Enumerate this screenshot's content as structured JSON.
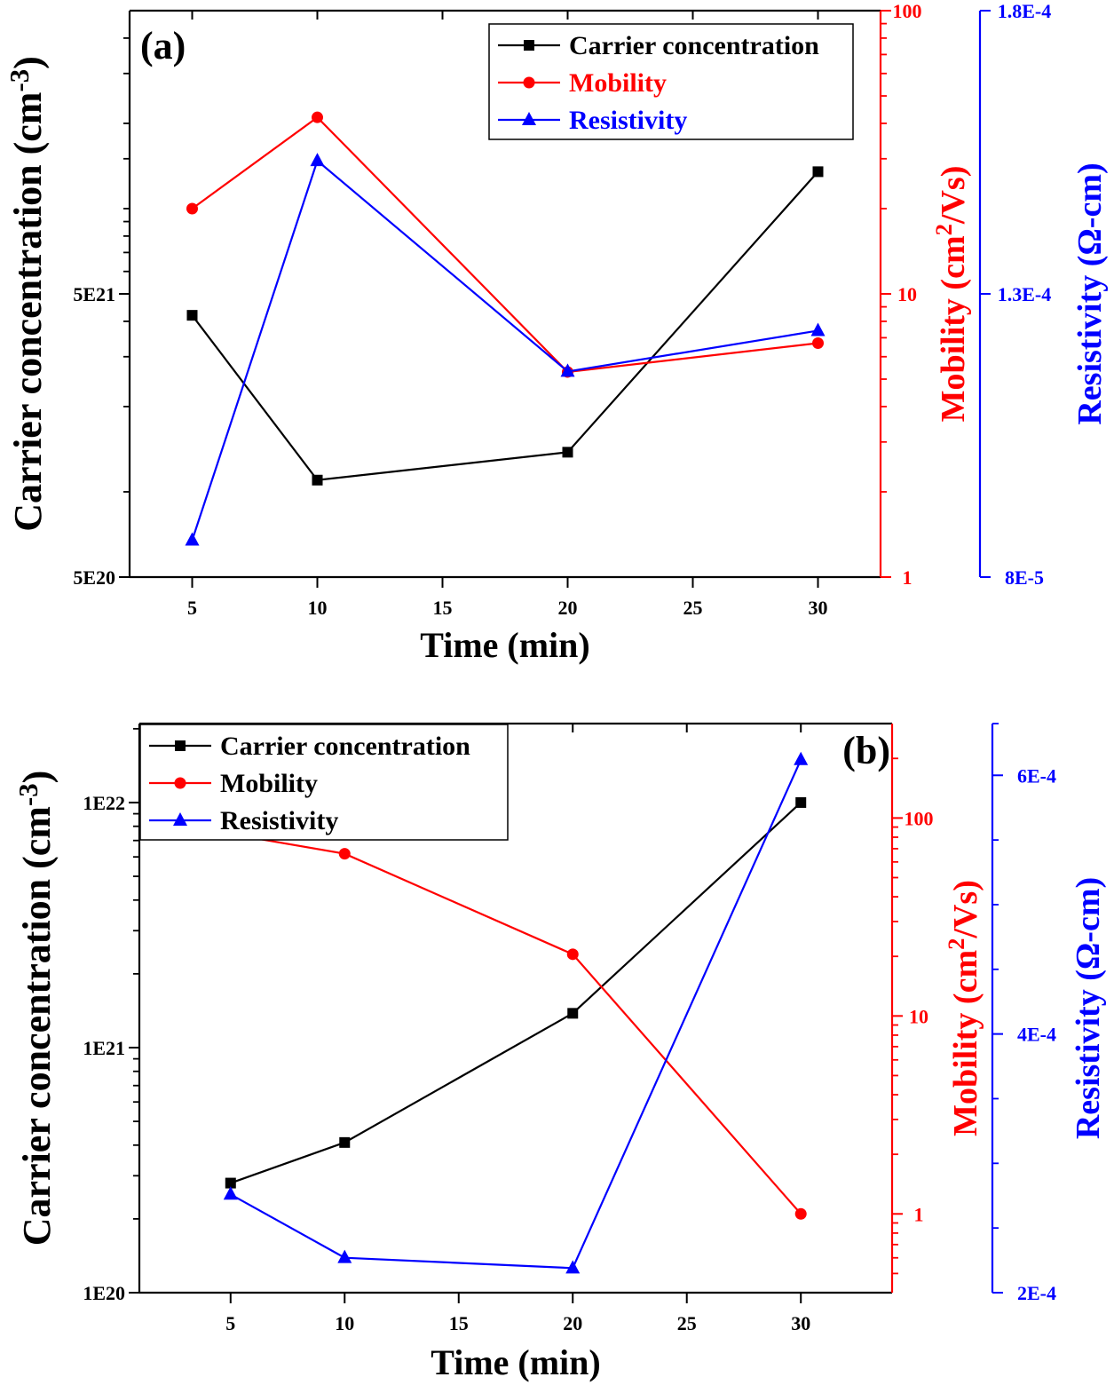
{
  "chart_data": [
    {
      "type": "line",
      "panel_label": "(a)",
      "x": [
        5,
        10,
        20,
        30
      ],
      "xlim": [
        2.5,
        32.5
      ],
      "xticks": [
        5,
        10,
        15,
        20,
        25,
        30
      ],
      "xlabel": "Time (min)",
      "axes": {
        "left": {
          "label": "Carrier concentration (cm",
          "sup": "-3",
          "label_end": ")",
          "scale": "log",
          "lim": [
            5e+20,
            5e+22
          ],
          "ticks": [
            {
              "v": 5e+20,
              "t": "5E20"
            },
            {
              "v": 5e+21,
              "t": "5E21"
            }
          ],
          "minor": [
            1e+21,
            2e+21,
            3e+21,
            4e+21,
            6e+21,
            7e+21,
            8e+21,
            9e+21,
            1e+22,
            1.5e+22,
            2e+22,
            3e+22,
            4e+22
          ],
          "color": "#000000"
        },
        "right1": {
          "label": "Mobility (cm",
          "sup": "2",
          "label_end": "/Vs)",
          "scale": "log",
          "lim": [
            1,
            100
          ],
          "ticks": [
            {
              "v": 1,
              "t": "1"
            },
            {
              "v": 10,
              "t": "10"
            },
            {
              "v": 100,
              "t": "100"
            }
          ],
          "minor": [
            2,
            3,
            4,
            5,
            6,
            7,
            8,
            9,
            20,
            30,
            40,
            50,
            60,
            70,
            80,
            90
          ],
          "color": "#ff0000"
        },
        "right2": {
          "label": "Resistivity (Ω-cm)",
          "scale": "linear",
          "lim": [
            8e-05,
            0.00018
          ],
          "ticks": [
            {
              "v": 8e-05,
              "t": "8E-5"
            },
            {
              "v": 0.00013,
              "t": "1.3E-4"
            },
            {
              "v": 0.00018,
              "t": "1.8E-4"
            }
          ],
          "minor": [],
          "color": "#0000ff"
        }
      },
      "series": [
        {
          "name": "Carrier concentration",
          "axis": "left",
          "marker": "square",
          "color": "#000000",
          "values": [
            4.2e+21,
            1.1e+21,
            1.38e+21,
            1.35e+22
          ]
        },
        {
          "name": "Mobility",
          "axis": "right1",
          "marker": "circle",
          "color": "#ff0000",
          "values": [
            20,
            42,
            5.3,
            6.7
          ]
        },
        {
          "name": "Resistivity",
          "axis": "right2",
          "marker": "triangle",
          "color": "#0000ff",
          "values": [
            8.65e-05,
            0.0001535,
            0.0001163,
            0.0001235
          ]
        }
      ],
      "legend": "top-right"
    },
    {
      "type": "line",
      "panel_label": "(b)",
      "x": [
        5,
        10,
        20,
        30
      ],
      "xlim": [
        1,
        34
      ],
      "xticks": [
        5,
        10,
        15,
        20,
        25,
        30
      ],
      "xlabel": "Time (min)",
      "axes": {
        "left": {
          "label": "Carrier concentration (cm",
          "sup": "-3",
          "label_end": ")",
          "scale": "log",
          "lim": [
            1e+20,
            2.1e+22
          ],
          "ticks": [
            {
              "v": 1e+20,
              "t": "1E20"
            },
            {
              "v": 1e+21,
              "t": "1E21"
            },
            {
              "v": 1e+22,
              "t": "1E22"
            }
          ],
          "minor": [
            2e+20,
            3e+20,
            4e+20,
            5e+20,
            6e+20,
            7e+20,
            8e+20,
            9e+20,
            2e+21,
            3e+21,
            4e+21,
            5e+21,
            6e+21,
            7e+21,
            8e+21,
            9e+21,
            2e+22
          ],
          "color": "#000000"
        },
        "right1": {
          "label": "Mobility (cm",
          "sup": "2",
          "label_end": "/Vs)",
          "scale": "log",
          "lim": [
            0.4,
            300
          ],
          "ticks": [
            {
              "v": 1,
              "t": "1"
            },
            {
              "v": 10,
              "t": "10"
            },
            {
              "v": 100,
              "t": "100"
            }
          ],
          "minor": [
            0.5,
            0.6,
            0.7,
            0.8,
            0.9,
            2,
            3,
            4,
            5,
            6,
            7,
            8,
            9,
            20,
            30,
            40,
            50,
            60,
            70,
            80,
            90,
            200
          ],
          "color": "#ff0000"
        },
        "right2": {
          "label": "Resistivity (Ω-cm)",
          "scale": "linear",
          "lim": [
            0.0002,
            0.00064
          ],
          "ticks": [
            {
              "v": 0.0002,
              "t": "2E-4"
            },
            {
              "v": 0.0004,
              "t": "4E-4"
            },
            {
              "v": 0.0006,
              "t": "6E-4"
            }
          ],
          "minor": [
            0.00025,
            0.0003,
            0.00035,
            0.00045,
            0.0005,
            0.00055,
            0.00064
          ],
          "color": "#0000ff"
        }
      },
      "series": [
        {
          "name": "Carrier concentration",
          "axis": "left",
          "marker": "square",
          "color": "#000000",
          "values": [
            2.8e+20,
            4.1e+20,
            1.38e+21,
            1e+22
          ]
        },
        {
          "name": "Mobility",
          "axis": "right1",
          "marker": "circle",
          "color": "#ff0000",
          "values": [
            83,
            66,
            20.5,
            1
          ]
        },
        {
          "name": "Resistivity",
          "axis": "right2",
          "marker": "triangle",
          "color": "#0000ff",
          "values": [
            0.000276,
            0.000227,
            0.000219,
            0.000612
          ]
        }
      ],
      "legend": "top-left"
    }
  ]
}
